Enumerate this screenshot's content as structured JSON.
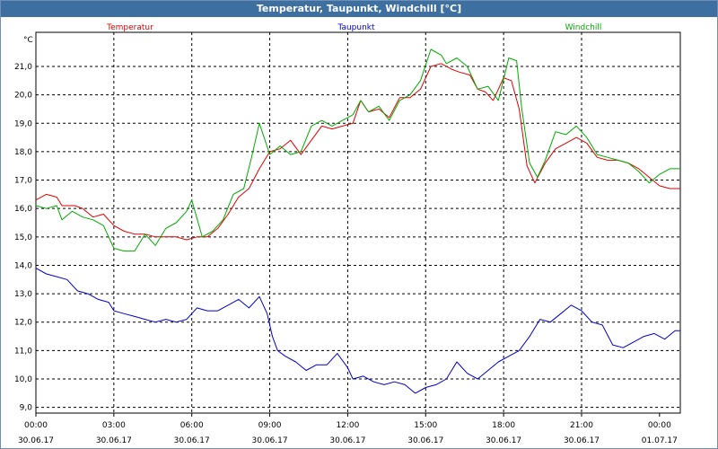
{
  "window": {
    "title": "Temperatur, Taupunkt, Windchill [°C]"
  },
  "chart_data": {
    "type": "line",
    "title": "Temperatur, Taupunkt, Windchill [°C]",
    "ylabel": "°C",
    "ylim": [
      8.8,
      22.2
    ],
    "y_ticks": [
      "9,0",
      "10,0",
      "11,0",
      "12,0",
      "13,0",
      "14,0",
      "15,0",
      "16,0",
      "17,0",
      "18,0",
      "19,0",
      "20,0",
      "21,0"
    ],
    "x_ticks": [
      {
        "time": "00:00",
        "date": "30.06.17"
      },
      {
        "time": "03:00",
        "date": "30.06.17"
      },
      {
        "time": "06:00",
        "date": "30.06.17"
      },
      {
        "time": "09:00",
        "date": "30.06.17"
      },
      {
        "time": "12:00",
        "date": "30.06.17"
      },
      {
        "time": "15:00",
        "date": "30.06.17"
      },
      {
        "time": "18:00",
        "date": "30.06.17"
      },
      {
        "time": "21:00",
        "date": "30.06.17"
      },
      {
        "time": "00:00",
        "date": "01.07.17"
      }
    ],
    "x_unit": "hours since 30.06.17 00:00",
    "grid": true,
    "series": [
      {
        "name": "Temperatur",
        "color": "#e00000",
        "points": [
          [
            0,
            16.3
          ],
          [
            0.4,
            16.5
          ],
          [
            0.8,
            16.4
          ],
          [
            1.0,
            16.1
          ],
          [
            1.5,
            16.1
          ],
          [
            1.8,
            16.0
          ],
          [
            2.2,
            15.7
          ],
          [
            2.6,
            15.8
          ],
          [
            3.0,
            15.4
          ],
          [
            3.4,
            15.2
          ],
          [
            3.8,
            15.1
          ],
          [
            4.2,
            15.1
          ],
          [
            4.6,
            15.0
          ],
          [
            5.0,
            15.0
          ],
          [
            5.4,
            15.0
          ],
          [
            5.8,
            14.9
          ],
          [
            6.2,
            15.0
          ],
          [
            6.6,
            15.0
          ],
          [
            7.0,
            15.3
          ],
          [
            7.4,
            15.8
          ],
          [
            7.8,
            16.4
          ],
          [
            8.2,
            16.7
          ],
          [
            8.6,
            17.4
          ],
          [
            9.0,
            18.0
          ],
          [
            9.4,
            18.1
          ],
          [
            9.8,
            18.4
          ],
          [
            10.2,
            17.9
          ],
          [
            10.6,
            18.4
          ],
          [
            11.0,
            18.9
          ],
          [
            11.4,
            18.8
          ],
          [
            11.8,
            18.9
          ],
          [
            12.2,
            19.0
          ],
          [
            12.5,
            19.8
          ],
          [
            12.8,
            19.4
          ],
          [
            13.2,
            19.5
          ],
          [
            13.6,
            19.2
          ],
          [
            14.0,
            19.9
          ],
          [
            14.4,
            19.9
          ],
          [
            14.8,
            20.2
          ],
          [
            15.2,
            21.0
          ],
          [
            15.6,
            21.1
          ],
          [
            16.0,
            20.9
          ],
          [
            16.3,
            20.8
          ],
          [
            16.7,
            20.7
          ],
          [
            17.0,
            20.2
          ],
          [
            17.3,
            20.1
          ],
          [
            17.6,
            19.8
          ],
          [
            18.0,
            20.6
          ],
          [
            18.3,
            20.5
          ],
          [
            18.6,
            19.5
          ],
          [
            18.9,
            17.5
          ],
          [
            19.2,
            16.9
          ],
          [
            19.6,
            17.6
          ],
          [
            20.0,
            18.1
          ],
          [
            20.4,
            18.3
          ],
          [
            20.8,
            18.5
          ],
          [
            21.2,
            18.3
          ],
          [
            21.6,
            17.8
          ],
          [
            22.0,
            17.7
          ],
          [
            22.4,
            17.7
          ],
          [
            22.8,
            17.6
          ],
          [
            23.2,
            17.4
          ],
          [
            23.6,
            17.1
          ],
          [
            24.0,
            16.8
          ],
          [
            24.4,
            16.7
          ],
          [
            24.8,
            16.7
          ]
        ]
      },
      {
        "name": "Taupunkt",
        "color": "#0000cc",
        "points": [
          [
            0,
            13.9
          ],
          [
            0.4,
            13.7
          ],
          [
            0.8,
            13.6
          ],
          [
            1.2,
            13.5
          ],
          [
            1.6,
            13.1
          ],
          [
            2.0,
            13.0
          ],
          [
            2.4,
            12.8
          ],
          [
            2.8,
            12.7
          ],
          [
            3.0,
            12.4
          ],
          [
            3.4,
            12.3
          ],
          [
            3.8,
            12.2
          ],
          [
            4.2,
            12.1
          ],
          [
            4.6,
            12.0
          ],
          [
            5.0,
            12.1
          ],
          [
            5.4,
            12.0
          ],
          [
            5.8,
            12.1
          ],
          [
            6.2,
            12.5
          ],
          [
            6.6,
            12.4
          ],
          [
            7.0,
            12.4
          ],
          [
            7.4,
            12.6
          ],
          [
            7.8,
            12.8
          ],
          [
            8.2,
            12.5
          ],
          [
            8.6,
            12.9
          ],
          [
            8.9,
            12.3
          ],
          [
            9.1,
            11.5
          ],
          [
            9.3,
            11.0
          ],
          [
            9.6,
            10.8
          ],
          [
            10.0,
            10.6
          ],
          [
            10.4,
            10.3
          ],
          [
            10.8,
            10.5
          ],
          [
            11.2,
            10.5
          ],
          [
            11.6,
            10.9
          ],
          [
            12.0,
            10.4
          ],
          [
            12.2,
            10.0
          ],
          [
            12.6,
            10.1
          ],
          [
            13.0,
            9.9
          ],
          [
            13.4,
            9.8
          ],
          [
            13.8,
            9.9
          ],
          [
            14.2,
            9.8
          ],
          [
            14.6,
            9.5
          ],
          [
            15.0,
            9.7
          ],
          [
            15.4,
            9.8
          ],
          [
            15.8,
            10.0
          ],
          [
            16.2,
            10.6
          ],
          [
            16.6,
            10.2
          ],
          [
            17.0,
            10.0
          ],
          [
            17.4,
            10.3
          ],
          [
            17.8,
            10.6
          ],
          [
            18.2,
            10.8
          ],
          [
            18.6,
            11.0
          ],
          [
            19.0,
            11.5
          ],
          [
            19.4,
            12.1
          ],
          [
            19.8,
            12.0
          ],
          [
            20.2,
            12.3
          ],
          [
            20.6,
            12.6
          ],
          [
            21.0,
            12.4
          ],
          [
            21.4,
            12.0
          ],
          [
            21.8,
            11.9
          ],
          [
            22.2,
            11.2
          ],
          [
            22.6,
            11.1
          ],
          [
            23.0,
            11.3
          ],
          [
            23.4,
            11.5
          ],
          [
            23.8,
            11.6
          ],
          [
            24.2,
            11.4
          ],
          [
            24.6,
            11.7
          ],
          [
            24.8,
            11.7
          ]
        ]
      },
      {
        "name": "Windchill",
        "color": "#00aa00",
        "points": [
          [
            0,
            16.1
          ],
          [
            0.4,
            16.0
          ],
          [
            0.8,
            16.1
          ],
          [
            1.0,
            15.6
          ],
          [
            1.4,
            15.9
          ],
          [
            1.8,
            15.7
          ],
          [
            2.2,
            15.6
          ],
          [
            2.6,
            15.4
          ],
          [
            3.0,
            14.6
          ],
          [
            3.4,
            14.5
          ],
          [
            3.8,
            14.5
          ],
          [
            4.2,
            15.1
          ],
          [
            4.6,
            14.7
          ],
          [
            5.0,
            15.3
          ],
          [
            5.4,
            15.5
          ],
          [
            5.8,
            15.9
          ],
          [
            6.0,
            16.3
          ],
          [
            6.4,
            15.0
          ],
          [
            6.8,
            15.2
          ],
          [
            7.2,
            15.6
          ],
          [
            7.6,
            16.5
          ],
          [
            8.0,
            16.7
          ],
          [
            8.3,
            17.8
          ],
          [
            8.6,
            19.0
          ],
          [
            9.0,
            17.9
          ],
          [
            9.4,
            18.2
          ],
          [
            9.8,
            17.9
          ],
          [
            10.2,
            18.0
          ],
          [
            10.6,
            18.9
          ],
          [
            11.0,
            19.1
          ],
          [
            11.4,
            18.9
          ],
          [
            11.8,
            19.1
          ],
          [
            12.2,
            19.3
          ],
          [
            12.5,
            19.8
          ],
          [
            12.8,
            19.4
          ],
          [
            13.2,
            19.6
          ],
          [
            13.6,
            19.1
          ],
          [
            14.0,
            19.8
          ],
          [
            14.4,
            20.0
          ],
          [
            14.8,
            20.5
          ],
          [
            15.2,
            21.6
          ],
          [
            15.6,
            21.4
          ],
          [
            15.8,
            21.1
          ],
          [
            16.2,
            21.3
          ],
          [
            16.6,
            21.0
          ],
          [
            17.0,
            20.2
          ],
          [
            17.4,
            20.3
          ],
          [
            17.8,
            19.8
          ],
          [
            18.2,
            21.3
          ],
          [
            18.5,
            21.2
          ],
          [
            18.7,
            19.5
          ],
          [
            19.0,
            17.6
          ],
          [
            19.3,
            17.1
          ],
          [
            19.6,
            17.7
          ],
          [
            20.0,
            18.7
          ],
          [
            20.4,
            18.6
          ],
          [
            20.8,
            18.9
          ],
          [
            21.2,
            18.5
          ],
          [
            21.6,
            17.9
          ],
          [
            22.0,
            17.8
          ],
          [
            22.4,
            17.7
          ],
          [
            22.8,
            17.6
          ],
          [
            23.2,
            17.3
          ],
          [
            23.6,
            16.9
          ],
          [
            24.0,
            17.2
          ],
          [
            24.4,
            17.4
          ],
          [
            24.8,
            17.4
          ]
        ]
      }
    ]
  }
}
